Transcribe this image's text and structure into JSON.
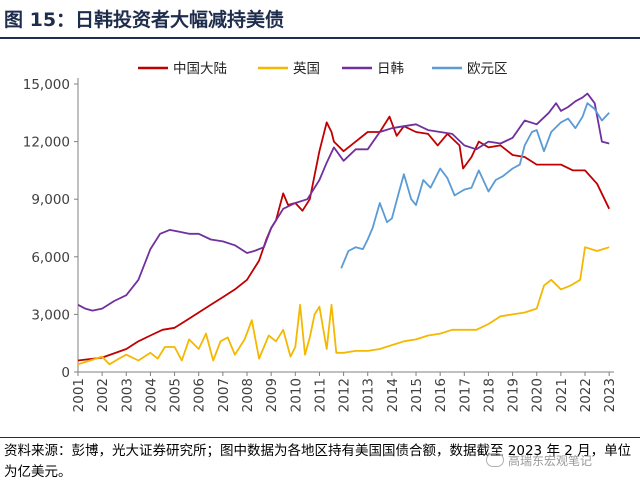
{
  "header": {
    "title": "图 15：日韩投资者大幅减持美债"
  },
  "footer": {
    "source": "资料来源：彭博，光大证券研究所；图中数据为各地区持有美国国债合额，数据截至 2023 年 2 月，单位为亿美元。",
    "watermark": "高瑞东宏观笔记"
  },
  "chart_data": {
    "type": "line",
    "title": "",
    "xlabel": "",
    "ylabel": "",
    "ylim": [
      0,
      15000
    ],
    "yticks": [
      "0",
      "3,000",
      "6,000",
      "9,000",
      "12,000",
      "15,000"
    ],
    "xticks": [
      "2001",
      "2002",
      "2003",
      "2004",
      "2005",
      "2006",
      "2007",
      "2008",
      "2009",
      "2010",
      "2011",
      "2012",
      "2013",
      "2014",
      "2015",
      "2016",
      "2017",
      "2018",
      "2019",
      "2020",
      "2021",
      "2022",
      "2023"
    ],
    "xlim": [
      2001.0,
      2023.2
    ],
    "grid": false,
    "legend_position": "top-center",
    "series": [
      {
        "name": "中国大陆",
        "color": "#c00000",
        "x": [
          2001.0,
          2002.0,
          2003.0,
          2003.5,
          2004.0,
          2004.5,
          2005.0,
          2005.5,
          2006.0,
          2006.5,
          2007.0,
          2007.5,
          2008.0,
          2008.5,
          2008.8,
          2009.0,
          2009.2,
          2009.5,
          2009.7,
          2010.0,
          2010.3,
          2010.6,
          2011.0,
          2011.3,
          2011.5,
          2011.6,
          2012.0,
          2012.5,
          2013.0,
          2013.5,
          2013.9,
          2014.2,
          2014.5,
          2015.0,
          2015.5,
          2015.9,
          2016.3,
          2016.8,
          2016.95,
          2017.3,
          2017.6,
          2018.0,
          2018.5,
          2019.0,
          2019.5,
          2020.0,
          2020.5,
          2021.0,
          2021.5,
          2022.0,
          2022.5,
          2023.0
        ],
        "values": [
          600,
          750,
          1200,
          1600,
          1900,
          2200,
          2300,
          2700,
          3100,
          3500,
          3900,
          4300,
          4800,
          5800,
          6900,
          7500,
          7900,
          9300,
          8700,
          8800,
          8400,
          9000,
          11500,
          13000,
          12500,
          12000,
          11500,
          12000,
          12500,
          12500,
          13300,
          12300,
          12800,
          12500,
          12400,
          11800,
          12400,
          11800,
          10600,
          11200,
          12000,
          11700,
          11800,
          11300,
          11200,
          10800,
          10800,
          10800,
          10500,
          10500,
          9800,
          8500
        ]
      },
      {
        "name": "英国",
        "color": "#f5b800",
        "x": [
          2001.0,
          2001.5,
          2002.0,
          2002.3,
          2002.7,
          2003.0,
          2003.5,
          2004.0,
          2004.3,
          2004.6,
          2005.0,
          2005.3,
          2005.6,
          2006.0,
          2006.3,
          2006.6,
          2006.9,
          2007.2,
          2007.5,
          2007.9,
          2008.2,
          2008.5,
          2008.9,
          2009.2,
          2009.5,
          2009.8,
          2010.0,
          2010.2,
          2010.4,
          2010.6,
          2010.8,
          2011.0,
          2011.3,
          2011.5,
          2011.7,
          2012.0,
          2012.5,
          2013.0,
          2013.5,
          2014.0,
          2014.5,
          2015.0,
          2015.5,
          2016.0,
          2016.5,
          2017.0,
          2017.5,
          2018.0,
          2018.5,
          2019.0,
          2019.5,
          2020.0,
          2020.3,
          2020.6,
          2021.0,
          2021.4,
          2021.8,
          2022.0,
          2022.5,
          2023.0
        ],
        "values": [
          400,
          600,
          800,
          400,
          700,
          900,
          600,
          1000,
          700,
          1300,
          1300,
          600,
          1700,
          1200,
          2000,
          600,
          1600,
          1800,
          900,
          1700,
          2700,
          700,
          1900,
          1600,
          2200,
          800,
          1300,
          3500,
          900,
          1800,
          3000,
          3400,
          1200,
          3500,
          1000,
          1000,
          1100,
          1100,
          1200,
          1400,
          1600,
          1700,
          1900,
          2000,
          2200,
          2200,
          2200,
          2500,
          2900,
          3000,
          3100,
          3300,
          4500,
          4800,
          4300,
          4500,
          4800,
          6500,
          6300,
          6500
        ]
      },
      {
        "name": "日韩",
        "color": "#7030a0",
        "x": [
          2001.0,
          2001.3,
          2001.6,
          2002.0,
          2002.5,
          2003.0,
          2003.5,
          2004.0,
          2004.4,
          2004.8,
          2005.2,
          2005.6,
          2006.0,
          2006.5,
          2007.0,
          2007.5,
          2008.0,
          2008.3,
          2008.7,
          2009.0,
          2009.5,
          2010.0,
          2010.5,
          2011.0,
          2011.3,
          2011.6,
          2012.0,
          2012.5,
          2013.0,
          2013.5,
          2014.0,
          2014.5,
          2015.0,
          2015.5,
          2016.0,
          2016.5,
          2017.0,
          2017.5,
          2018.0,
          2018.5,
          2019.0,
          2019.5,
          2020.0,
          2020.5,
          2020.8,
          2021.0,
          2021.3,
          2021.6,
          2021.9,
          2022.1,
          2022.4,
          2022.7,
          2023.0
        ],
        "values": [
          3500,
          3300,
          3200,
          3300,
          3700,
          4000,
          4800,
          6400,
          7200,
          7400,
          7300,
          7200,
          7200,
          6900,
          6800,
          6600,
          6200,
          6300,
          6500,
          7500,
          8500,
          8800,
          9000,
          10000,
          10900,
          11700,
          11000,
          11600,
          11600,
          12500,
          12700,
          12800,
          12900,
          12600,
          12500,
          12400,
          11800,
          11600,
          12000,
          11900,
          12200,
          13100,
          12900,
          13500,
          14000,
          13600,
          13800,
          14100,
          14300,
          14500,
          14000,
          12000,
          11900
        ]
      },
      {
        "name": "欧元区",
        "color": "#5b9bd5",
        "x": [
          2011.9,
          2012.2,
          2012.5,
          2012.8,
          2013.0,
          2013.2,
          2013.5,
          2013.8,
          2014.0,
          2014.3,
          2014.5,
          2014.8,
          2015.0,
          2015.3,
          2015.6,
          2016.0,
          2016.3,
          2016.6,
          2017.0,
          2017.3,
          2017.6,
          2018.0,
          2018.3,
          2018.6,
          2019.0,
          2019.3,
          2019.5,
          2019.8,
          2020.0,
          2020.3,
          2020.6,
          2021.0,
          2021.3,
          2021.6,
          2021.9,
          2022.1,
          2022.4,
          2022.7,
          2023.0
        ],
        "values": [
          5400,
          6300,
          6500,
          6400,
          6900,
          7500,
          8800,
          7800,
          8000,
          9400,
          10300,
          9000,
          8700,
          10000,
          9600,
          10600,
          10100,
          9200,
          9500,
          9600,
          10500,
          9400,
          10000,
          10200,
          10600,
          10800,
          11800,
          12500,
          12600,
          11500,
          12500,
          13000,
          13200,
          12700,
          13300,
          14000,
          13700,
          13100,
          13500
        ]
      }
    ]
  }
}
